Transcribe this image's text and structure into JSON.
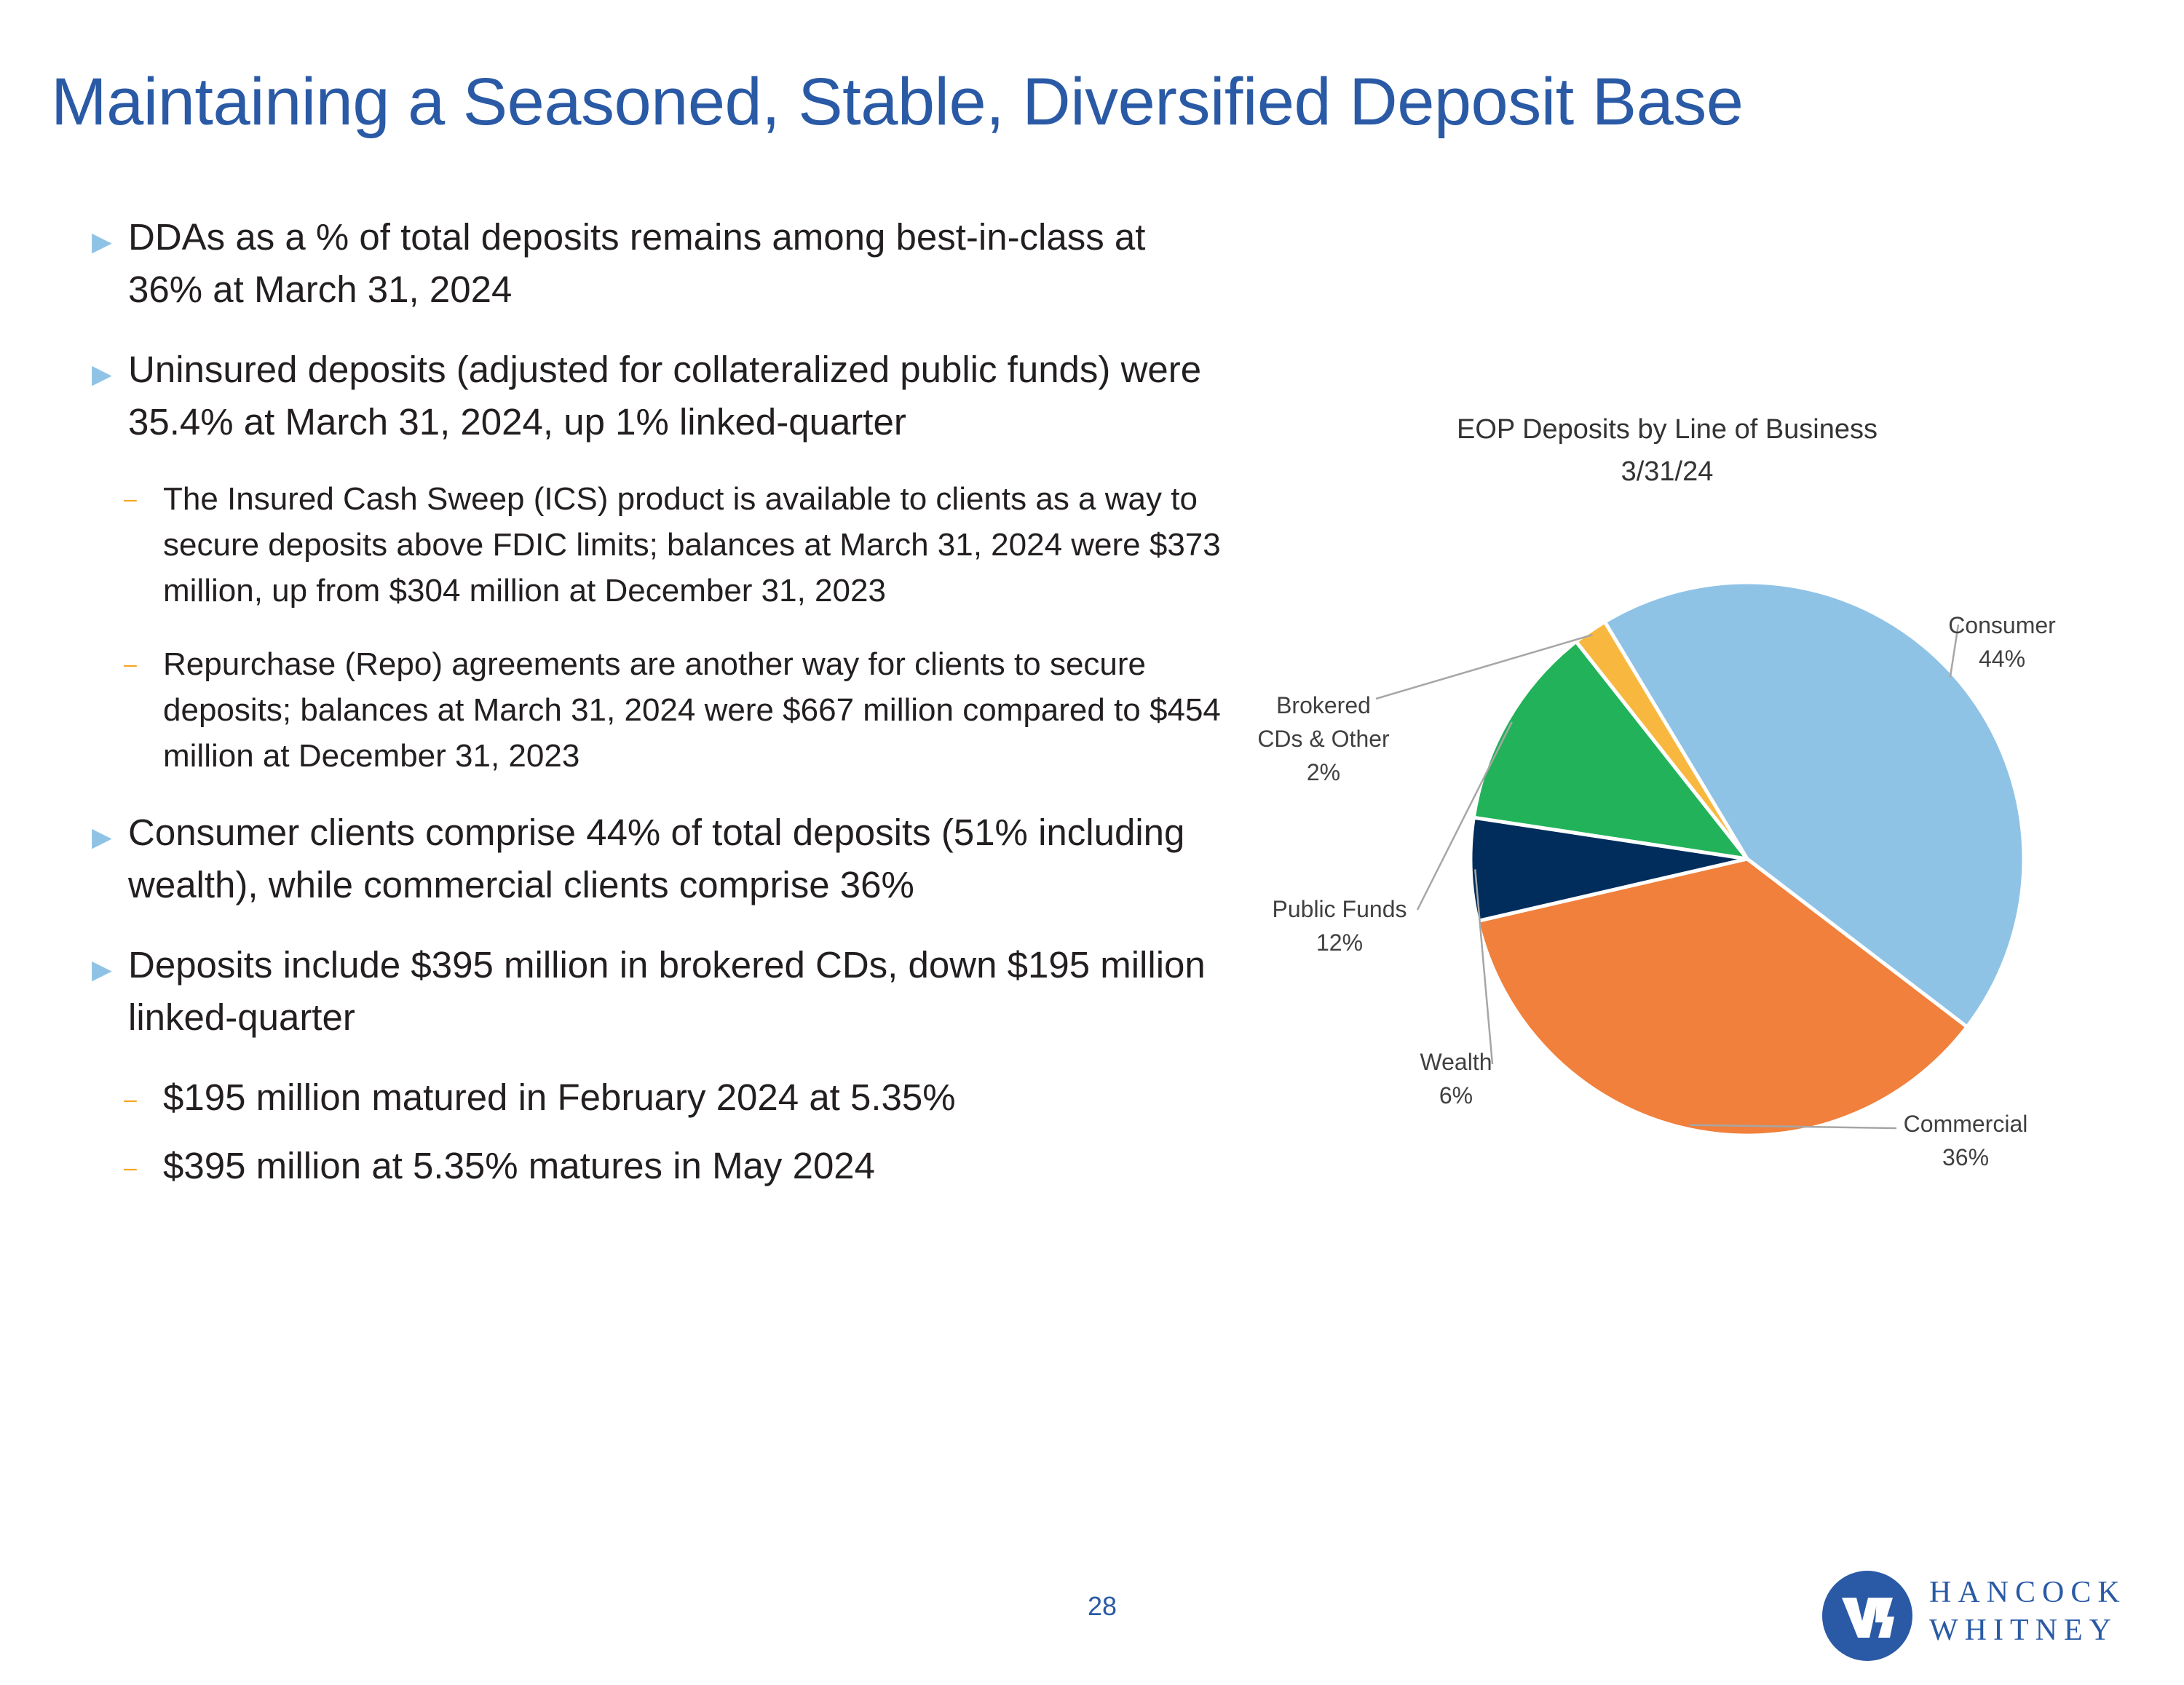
{
  "page": {
    "title": "Maintaining a Seasoned, Stable, Diversified Deposit Base",
    "page_number": "28"
  },
  "bullets": [
    {
      "marker": "▶",
      "text": "DDAs as a % of total deposits remains among best-in-class at 36% at March 31, 2024",
      "sub": []
    },
    {
      "marker": "▶",
      "text": "Uninsured deposits (adjusted for collateralized public funds) were 35.4% at March 31, 2024, up 1% linked-quarter",
      "sub": [
        {
          "marker": "–",
          "text": "The Insured Cash Sweep (ICS) product is available to clients as a way to secure deposits above FDIC limits; balances at March 31, 2024 were $373 million, up from $304 million at December 31, 2023"
        },
        {
          "marker": "–",
          "text": "Repurchase (Repo) agreements are another way for clients to secure deposits; balances at March 31, 2024 were $667 million compared to $454 million at December 31, 2023"
        }
      ]
    },
    {
      "marker": "▶",
      "text": "Consumer clients comprise 44% of total deposits (51% including wealth), while commercial clients comprise 36%",
      "sub": []
    },
    {
      "marker": "▶",
      "text": "Deposits include $395 million in brokered CDs, down $195 million linked-quarter",
      "sub": [
        {
          "marker": "–",
          "text": "$195 million matured in February 2024 at 5.35%"
        },
        {
          "marker": "–",
          "text": "$395 million at 5.35% matures in May 2024"
        }
      ]
    }
  ],
  "chart_data": {
    "type": "pie",
    "title": "EOP Deposits by Line of Business",
    "subtitle": "3/31/24",
    "slices": [
      {
        "label": "Consumer",
        "label_lines": [
          "Consumer"
        ],
        "value": 44,
        "value_label": "44%",
        "color": "#8fc3e6"
      },
      {
        "label": "Commercial",
        "label_lines": [
          "Commercial"
        ],
        "value": 36,
        "value_label": "36%",
        "color": "#f0803c"
      },
      {
        "label": "Wealth",
        "label_lines": [
          "Wealth"
        ],
        "value": 6,
        "value_label": "6%",
        "color": "#002d5c"
      },
      {
        "label": "Public Funds",
        "label_lines": [
          "Public Funds"
        ],
        "value": 12,
        "value_label": "12%",
        "color": "#22b35a"
      },
      {
        "label": "Brokered CDs & Other",
        "label_lines": [
          "Brokered",
          "CDs & Other"
        ],
        "value": 2,
        "value_label": "2%",
        "color": "#f8b840"
      }
    ],
    "legend": "none",
    "labels": "outside with leader lines"
  },
  "logo": {
    "line1": "HANCOCK",
    "line2": "WHITNEY",
    "colors": {
      "circle": "#2a5aa5",
      "mark": "#ffffff"
    }
  }
}
